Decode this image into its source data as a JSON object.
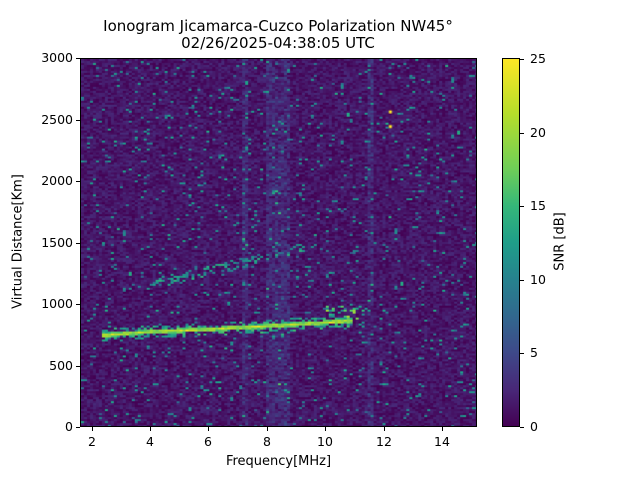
{
  "chart_data": {
    "type": "heatmap",
    "title": "Ionogram Jicamarca-Cuzco Polarization NW45°",
    "subtitle": "02/26/2025-04:38:05 UTC",
    "xlabel": "Frequency[MHz]",
    "ylabel": "Virtual Distance[Km]",
    "xlim": [
      1.6,
      15.2
    ],
    "ylim": [
      0,
      3000
    ],
    "xticks": [
      2,
      4,
      6,
      8,
      10,
      12,
      14
    ],
    "yticks": [
      0,
      500,
      1000,
      1500,
      2000,
      2500,
      3000
    ],
    "colorbar": {
      "label": "SNR [dB]",
      "range": [
        0,
        25
      ],
      "ticks": [
        0,
        5,
        10,
        15,
        20,
        25
      ],
      "colormap": "viridis"
    },
    "grid": false,
    "features": [
      {
        "name": "primary-echo-trace",
        "description": "strong yellow trace (~25 dB)",
        "points": [
          [
            2.3,
            740
          ],
          [
            4,
            770
          ],
          [
            6,
            790
          ],
          [
            8,
            815
          ],
          [
            10,
            845
          ],
          [
            11,
            860
          ]
        ]
      },
      {
        "name": "weak-flare-at-trace-end",
        "description": "green/teal scatter",
        "points": [
          [
            10.2,
            880
          ],
          [
            10.8,
            940
          ],
          [
            11.3,
            920
          ]
        ]
      },
      {
        "name": "second-hop-trace",
        "description": "faint teal trace (~10-15 dB)",
        "points": [
          [
            4,
            1150
          ],
          [
            5,
            1220
          ],
          [
            6.5,
            1290
          ],
          [
            8,
            1380
          ],
          [
            9.3,
            1470
          ]
        ]
      },
      {
        "name": "interference-band",
        "description": "vertical elevated-noise bands",
        "x_ranges": [
          [
            7.2,
            7.4
          ],
          [
            8.0,
            8.8
          ],
          [
            11.5,
            11.7
          ]
        ]
      },
      {
        "name": "isolated-points",
        "description": "yellow specks",
        "points": [
          [
            12.2,
            2580
          ],
          [
            12.2,
            2460
          ]
        ]
      }
    ]
  },
  "colors": {
    "background": "#440154",
    "trace": "#fde725"
  }
}
